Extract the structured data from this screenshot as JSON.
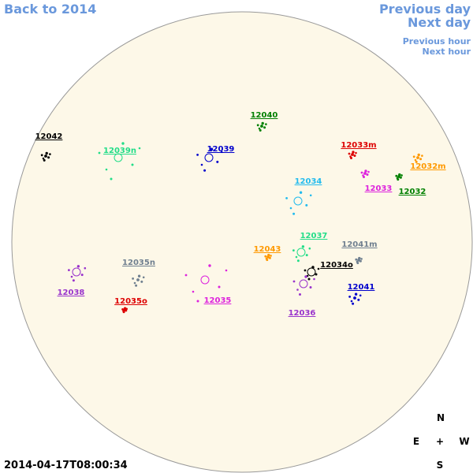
{
  "navigation": {
    "back": "Back to 2014",
    "previous_day": "Previous day",
    "next_day": "Next day",
    "previous_hour": "Previous hour",
    "next_hour": "Next hour"
  },
  "regions": [
    {
      "label": "12042",
      "color": "#000000"
    },
    {
      "label": "12039n",
      "color": "#22dd88"
    },
    {
      "label": "12039",
      "color": "#0000cc"
    },
    {
      "label": "12040",
      "color": "#008000"
    },
    {
      "label": "12033m",
      "color": "#dd0000"
    },
    {
      "label": "12032m",
      "color": "#ff9900"
    },
    {
      "label": "12033",
      "color": "#dd22dd"
    },
    {
      "label": "12032",
      "color": "#008000"
    },
    {
      "label": "12034",
      "color": "#22bbee"
    },
    {
      "label": "12037",
      "color": "#22dd88"
    },
    {
      "label": "12043",
      "color": "#ff9900"
    },
    {
      "label": "12041m",
      "color": "#708090"
    },
    {
      "label": "12034o",
      "color": "#000000"
    },
    {
      "label": "12035n",
      "color": "#708090"
    },
    {
      "label": "12038",
      "color": "#9933cc"
    },
    {
      "label": "12035o",
      "color": "#dd0000"
    },
    {
      "label": "12035",
      "color": "#dd22dd"
    },
    {
      "label": "12036",
      "color": "#9933cc"
    },
    {
      "label": "12041",
      "color": "#0000cc"
    }
  ],
  "compass": {
    "north": "N",
    "east": "E",
    "center": "+",
    "west": "W",
    "south": "S"
  },
  "timestamp": "2014-04-17T08:00:34"
}
